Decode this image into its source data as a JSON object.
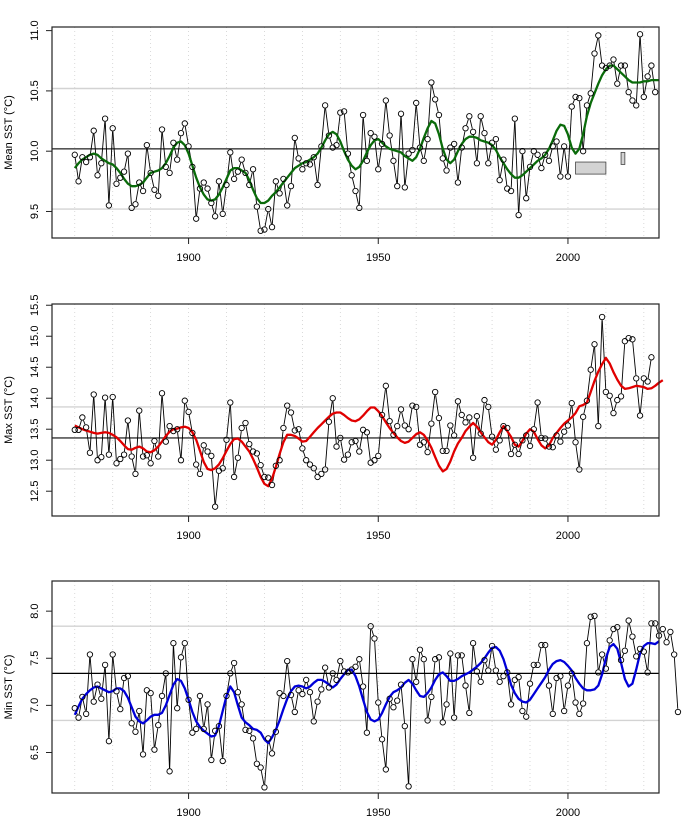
{
  "chart_data": [
    {
      "type": "line",
      "id": "mean",
      "ylabel": "Mean SST (°C)",
      "xlabel": "",
      "xlim": [
        1864,
        2024
      ],
      "ylim": [
        9.28,
        11.03
      ],
      "xticks": [
        1900,
        1950,
        2000
      ],
      "yticks": [
        9.5,
        10.0,
        10.5,
        11.0
      ],
      "ytick_labels": [
        "9.5",
        "10.0",
        "10.5",
        "11.0"
      ],
      "vgrid_years": [
        1870,
        1880,
        1890,
        1900,
        1910,
        1920,
        1930,
        1940,
        1950,
        1960,
        1970,
        1980,
        1990,
        2000,
        2010,
        2020
      ],
      "mean_line": 10.02,
      "band_lines": [
        9.52,
        10.52
      ],
      "smooth_color": "#0a6b0a",
      "x_start": 1870,
      "values": [
        9.97,
        9.75,
        9.95,
        9.91,
        9.95,
        10.17,
        9.8,
        9.9,
        10.27,
        9.55,
        10.19,
        9.73,
        9.78,
        9.83,
        9.98,
        9.53,
        9.56,
        9.74,
        9.67,
        10.05,
        9.82,
        9.68,
        9.63,
        10.18,
        9.87,
        9.82,
        10.07,
        9.93,
        10.15,
        10.23,
        10.04,
        9.87,
        9.44,
        9.69,
        9.74,
        9.69,
        9.57,
        9.46,
        9.75,
        9.48,
        9.72,
        9.99,
        9.77,
        9.83,
        9.93,
        9.82,
        9.72,
        9.85,
        9.54,
        9.34,
        9.35,
        9.52,
        9.37,
        9.75,
        9.65,
        9.77,
        9.55,
        9.71,
        10.11,
        9.94,
        9.85,
        9.9,
        9.89,
        9.95,
        9.72,
        10.04,
        10.38,
        10.13,
        10.03,
        10.05,
        10.32,
        10.33,
        9.98,
        9.8,
        9.67,
        9.53,
        10.3,
        9.92,
        10.15,
        10.12,
        9.85,
        10.06,
        10.42,
        10.13,
        9.92,
        9.71,
        10.31,
        9.7,
        9.98,
        10.01,
        10.4,
        10.03,
        9.92,
        10.1,
        10.57,
        10.43,
        10.3,
        9.94,
        9.84,
        10.03,
        10.06,
        9.74,
        10.03,
        10.19,
        10.29,
        10.16,
        9.9,
        10.29,
        10.15,
        9.9,
        10.07,
        10.1,
        9.76,
        9.93,
        9.69,
        9.67,
        10.27,
        9.47,
        10.0,
        9.61,
        9.87,
        10.0,
        9.97,
        9.86,
        9.97,
        9.92,
        10.04,
        10.08,
        9.79,
        10.04,
        9.79,
        10.37,
        10.45,
        10.44,
        10.0,
        10.38,
        10.48,
        10.81,
        10.96,
        10.71,
        10.69,
        10.71,
        10.76,
        10.56,
        10.71,
        10.71,
        10.49,
        10.42,
        10.38,
        10.97,
        10.45,
        10.62,
        10.71,
        10.49
      ],
      "smooth": [
        9.86,
        9.9,
        9.93,
        9.95,
        9.97,
        9.98,
        9.97,
        9.94,
        9.92,
        9.9,
        9.89,
        9.86,
        9.82,
        9.77,
        9.73,
        9.71,
        9.71,
        9.72,
        9.74,
        9.78,
        9.82,
        9.83,
        9.84,
        9.86,
        9.9,
        9.96,
        10.03,
        10.07,
        10.08,
        10.05,
        9.98,
        9.88,
        9.78,
        9.7,
        9.64,
        9.6,
        9.59,
        9.6,
        9.64,
        9.7,
        9.77,
        9.84,
        9.86,
        9.86,
        9.84,
        9.82,
        9.76,
        9.68,
        9.61,
        9.57,
        9.57,
        9.59,
        9.63,
        9.66,
        9.7,
        9.74,
        9.78,
        9.82,
        9.86,
        9.88,
        9.9,
        9.91,
        9.93,
        9.95,
        9.98,
        10.03,
        10.09,
        10.14,
        10.16,
        10.14,
        10.08,
        10.0,
        9.93,
        9.88,
        9.85,
        9.87,
        9.92,
        9.99,
        10.05,
        10.09,
        10.1,
        10.07,
        10.04,
        10.02,
        10.01,
        10.0,
        9.99,
        9.96,
        9.94,
        9.92,
        9.95,
        10.02,
        10.11,
        10.19,
        10.25,
        10.23,
        10.14,
        10.02,
        9.93,
        9.9,
        9.93,
        10.0,
        10.06,
        10.1,
        10.12,
        10.12,
        10.11,
        10.09,
        10.08,
        10.07,
        10.05,
        10.01,
        9.95,
        9.9,
        9.85,
        9.81,
        9.78,
        9.78,
        9.8,
        9.83,
        9.86,
        9.89,
        9.92,
        9.94,
        9.97,
        10.02,
        10.09,
        10.17,
        10.22,
        10.21,
        10.14,
        10.03,
        9.98,
        10.02,
        10.14,
        10.29,
        10.4,
        10.48,
        10.56,
        10.63,
        10.68,
        10.71,
        10.71,
        10.68,
        10.65,
        10.62,
        10.59,
        10.57,
        10.57,
        10.57,
        10.58,
        10.58,
        10.59,
        10.59,
        10.59
      ],
      "gray_boxes": [
        {
          "x0": 2002,
          "x1": 2010,
          "y0": 9.81,
          "y1": 9.91
        },
        {
          "x0": 2014,
          "x1": 2015,
          "y0": 9.89,
          "y1": 9.99
        }
      ]
    },
    {
      "type": "line",
      "id": "max",
      "ylabel": "Max SST (°C)",
      "xlabel": "",
      "xlim": [
        1864,
        2024
      ],
      "ylim": [
        12.1,
        15.52
      ],
      "xticks": [
        1900,
        1950,
        2000
      ],
      "yticks": [
        12.5,
        13.0,
        13.5,
        14.0,
        14.5,
        15.0,
        15.5
      ],
      "ytick_labels": [
        "12.5",
        "13.0",
        "13.5",
        "14.0",
        "14.5",
        "15.0",
        "15.5"
      ],
      "vgrid_years": [
        1870,
        1880,
        1890,
        1900,
        1910,
        1920,
        1930,
        1940,
        1950,
        1960,
        1970,
        1980,
        1990,
        2000,
        2010,
        2020
      ],
      "mean_line": 13.36,
      "band_lines": [
        12.86,
        13.86
      ],
      "smooth_color": "#e00000",
      "x_start": 1870,
      "values": [
        13.49,
        13.49,
        13.69,
        13.53,
        13.12,
        14.06,
        13.0,
        13.05,
        14.01,
        13.09,
        14.02,
        12.95,
        13.02,
        13.09,
        13.64,
        13.06,
        12.78,
        13.8,
        13.06,
        13.08,
        12.95,
        13.31,
        13.06,
        14.08,
        13.3,
        13.55,
        13.47,
        13.5,
        13.0,
        13.96,
        13.78,
        13.44,
        12.93,
        12.78,
        13.24,
        13.14,
        13.07,
        12.25,
        12.83,
        12.87,
        13.33,
        13.93,
        12.73,
        13.04,
        13.52,
        13.6,
        13.26,
        13.14,
        13.11,
        12.92,
        12.73,
        12.72,
        12.6,
        12.91,
        13.0,
        13.52,
        13.88,
        13.77,
        13.48,
        13.5,
        13.19,
        13.0,
        12.93,
        12.87,
        12.73,
        12.78,
        12.85,
        13.62,
        14.0,
        13.22,
        13.36,
        13.01,
        13.09,
        13.29,
        13.31,
        13.14,
        13.49,
        13.45,
        12.96,
        13.0,
        13.07,
        13.73,
        14.2,
        13.63,
        13.41,
        13.55,
        13.82,
        13.56,
        13.5,
        13.88,
        13.86,
        13.25,
        13.29,
        13.13,
        13.59,
        14.1,
        13.68,
        13.15,
        13.15,
        13.56,
        13.4,
        13.95,
        13.73,
        13.61,
        13.69,
        13.04,
        13.71,
        13.43,
        13.97,
        13.86,
        13.38,
        13.17,
        13.32,
        13.55,
        13.52,
        13.1,
        13.25,
        13.1,
        13.32,
        13.4,
        13.23,
        13.5,
        13.93,
        13.36,
        13.35,
        13.22,
        13.21,
        13.4,
        13.3,
        13.46,
        13.56,
        13.92,
        13.29,
        12.85,
        13.7,
        13.96,
        14.46,
        14.87,
        13.55,
        15.31,
        14.1,
        14.04,
        13.76,
        13.97,
        14.03,
        14.92,
        14.97,
        14.95,
        14.32,
        13.72,
        14.32,
        14.27,
        14.66
      ],
      "smooth": [
        13.56,
        13.53,
        13.5,
        13.48,
        13.46,
        13.44,
        13.43,
        13.44,
        13.45,
        13.44,
        13.41,
        13.37,
        13.31,
        13.24,
        13.18,
        13.17,
        13.2,
        13.22,
        13.19,
        13.14,
        13.13,
        13.16,
        13.22,
        13.3,
        13.39,
        13.46,
        13.5,
        13.51,
        13.53,
        13.54,
        13.52,
        13.45,
        13.33,
        13.15,
        12.97,
        12.86,
        12.84,
        12.87,
        12.93,
        13.03,
        13.15,
        13.26,
        13.34,
        13.35,
        13.3,
        13.22,
        13.14,
        13.02,
        12.88,
        12.73,
        12.62,
        12.58,
        12.7,
        12.89,
        13.1,
        13.29,
        13.41,
        13.41,
        13.39,
        13.35,
        13.3,
        13.31,
        13.38,
        13.45,
        13.52,
        13.58,
        13.64,
        13.7,
        13.75,
        13.77,
        13.77,
        13.73,
        13.68,
        13.64,
        13.63,
        13.66,
        13.72,
        13.79,
        13.85,
        13.85,
        13.79,
        13.71,
        13.61,
        13.52,
        13.44,
        13.37,
        13.31,
        13.28,
        13.3,
        13.36,
        13.42,
        13.45,
        13.41,
        13.32,
        13.2,
        13.05,
        12.91,
        12.82,
        12.86,
        12.98,
        13.14,
        13.27,
        13.36,
        13.47,
        13.54,
        13.6,
        13.54,
        13.45,
        13.37,
        13.29,
        13.25,
        13.33,
        13.45,
        13.55,
        13.47,
        13.38,
        13.25,
        13.22,
        13.31,
        13.43,
        13.5,
        13.46,
        13.34,
        13.24,
        13.19,
        13.24,
        13.36,
        13.44,
        13.52,
        13.59,
        13.64,
        13.69,
        13.76,
        13.87,
        13.89,
        13.93,
        14.1,
        14.28,
        14.43,
        14.55,
        14.65,
        14.56,
        14.42,
        14.3,
        14.2,
        14.15,
        14.16,
        14.18,
        14.2,
        14.19,
        14.18,
        14.15,
        14.16,
        14.2,
        14.25,
        14.29
      ],
      "gray_boxes": []
    },
    {
      "type": "line",
      "id": "min",
      "ylabel": "Min SST (°C)",
      "xlabel": "",
      "xlim": [
        1864,
        2024
      ],
      "ylim": [
        6.07,
        8.32
      ],
      "xticks": [
        1900,
        1950,
        2000
      ],
      "yticks": [
        6.5,
        7.0,
        7.5,
        8.0
      ],
      "ytick_labels": [
        "6.5",
        "7.0",
        "7.5",
        "8.0"
      ],
      "vgrid_years": [
        1870,
        1880,
        1890,
        1900,
        1910,
        1920,
        1930,
        1940,
        1950,
        1960,
        1970,
        1980,
        1990,
        2000,
        2010,
        2020
      ],
      "mean_line": 7.34,
      "band_lines": [
        6.84,
        7.84
      ],
      "smooth_color": "#0000d8",
      "x_start": 1870,
      "values": [
        6.97,
        6.87,
        7.09,
        6.91,
        7.54,
        7.04,
        7.22,
        7.07,
        7.43,
        6.62,
        7.54,
        7.15,
        6.96,
        7.29,
        7.31,
        6.81,
        6.72,
        6.94,
        6.48,
        7.16,
        7.13,
        6.53,
        6.79,
        7.1,
        7.34,
        6.3,
        7.66,
        6.97,
        7.51,
        7.66,
        7.06,
        6.71,
        6.75,
        7.1,
        6.75,
        7.01,
        6.42,
        6.73,
        6.78,
        6.41,
        7.1,
        7.34,
        7.45,
        7.14,
        7.01,
        6.74,
        6.73,
        6.65,
        6.38,
        6.34,
        6.13,
        6.65,
        6.49,
        6.72,
        7.13,
        7.1,
        7.47,
        7.11,
        6.93,
        7.16,
        7.12,
        7.27,
        7.14,
        6.83,
        7.04,
        7.17,
        7.4,
        7.19,
        7.34,
        7.27,
        7.47,
        7.36,
        7.35,
        7.38,
        7.41,
        7.49,
        7.2,
        6.71,
        7.84,
        7.71,
        7.03,
        6.64,
        6.32,
        7.07,
        6.98,
        7.05,
        7.22,
        6.78,
        6.14,
        7.49,
        7.25,
        7.59,
        7.49,
        6.84,
        7.09,
        7.49,
        7.51,
        6.82,
        7.01,
        7.55,
        6.87,
        7.53,
        7.53,
        7.21,
        6.92,
        7.66,
        7.36,
        7.25,
        7.48,
        7.37,
        7.63,
        7.37,
        7.25,
        7.31,
        7.35,
        7.01,
        7.27,
        7.3,
        6.94,
        6.88,
        7.23,
        7.43,
        7.43,
        7.64,
        7.64,
        7.21,
        6.91,
        7.29,
        7.31,
        6.94,
        7.21,
        7.34,
        7.03,
        6.91,
        7.02,
        7.66,
        7.94,
        7.95,
        7.35,
        7.54,
        7.39,
        7.69,
        7.81,
        7.83,
        7.48,
        7.58,
        7.9,
        7.73,
        7.52,
        7.6,
        7.57,
        7.35,
        7.87,
        7.87,
        7.74,
        7.81,
        7.67,
        7.78,
        7.54,
        6.93
      ],
      "smooth": [
        6.9,
        6.99,
        7.07,
        7.12,
        7.16,
        7.19,
        7.2,
        7.18,
        7.16,
        7.14,
        7.15,
        7.18,
        7.18,
        7.15,
        7.08,
        6.98,
        6.88,
        6.83,
        6.81,
        6.84,
        6.88,
        6.9,
        6.9,
        6.92,
        7.0,
        7.11,
        7.22,
        7.28,
        7.26,
        7.18,
        7.06,
        6.93,
        6.83,
        6.77,
        6.73,
        6.7,
        6.67,
        6.68,
        6.78,
        6.94,
        7.1,
        7.2,
        7.14,
        7.0,
        6.87,
        6.82,
        6.79,
        6.75,
        6.74,
        6.71,
        6.64,
        6.6,
        6.66,
        6.74,
        6.84,
        6.96,
        7.07,
        7.15,
        7.2,
        7.21,
        7.2,
        7.18,
        7.2,
        7.24,
        7.27,
        7.27,
        7.25,
        7.22,
        7.19,
        7.22,
        7.28,
        7.33,
        7.38,
        7.38,
        7.31,
        7.2,
        7.06,
        6.93,
        6.85,
        6.83,
        6.85,
        6.92,
        7.01,
        7.09,
        7.14,
        7.16,
        7.19,
        7.24,
        7.27,
        7.23,
        7.16,
        7.1,
        7.09,
        7.13,
        7.19,
        7.27,
        7.33,
        7.35,
        7.31,
        7.26,
        7.26,
        7.28,
        7.31,
        7.33,
        7.35,
        7.38,
        7.41,
        7.45,
        7.5,
        7.56,
        7.61,
        7.62,
        7.58,
        7.49,
        7.36,
        7.22,
        7.13,
        7.07,
        7.04,
        7.03,
        7.06,
        7.12,
        7.18,
        7.24,
        7.3,
        7.38,
        7.44,
        7.47,
        7.48,
        7.46,
        7.42,
        7.37,
        7.29,
        7.23,
        7.18,
        7.16,
        7.16,
        7.17,
        7.21,
        7.33,
        7.5,
        7.62,
        7.65,
        7.6,
        7.45,
        7.28,
        7.2,
        7.23,
        7.38,
        7.55,
        7.63,
        7.66,
        7.66,
        7.65,
        7.68
      ]
    }
  ]
}
